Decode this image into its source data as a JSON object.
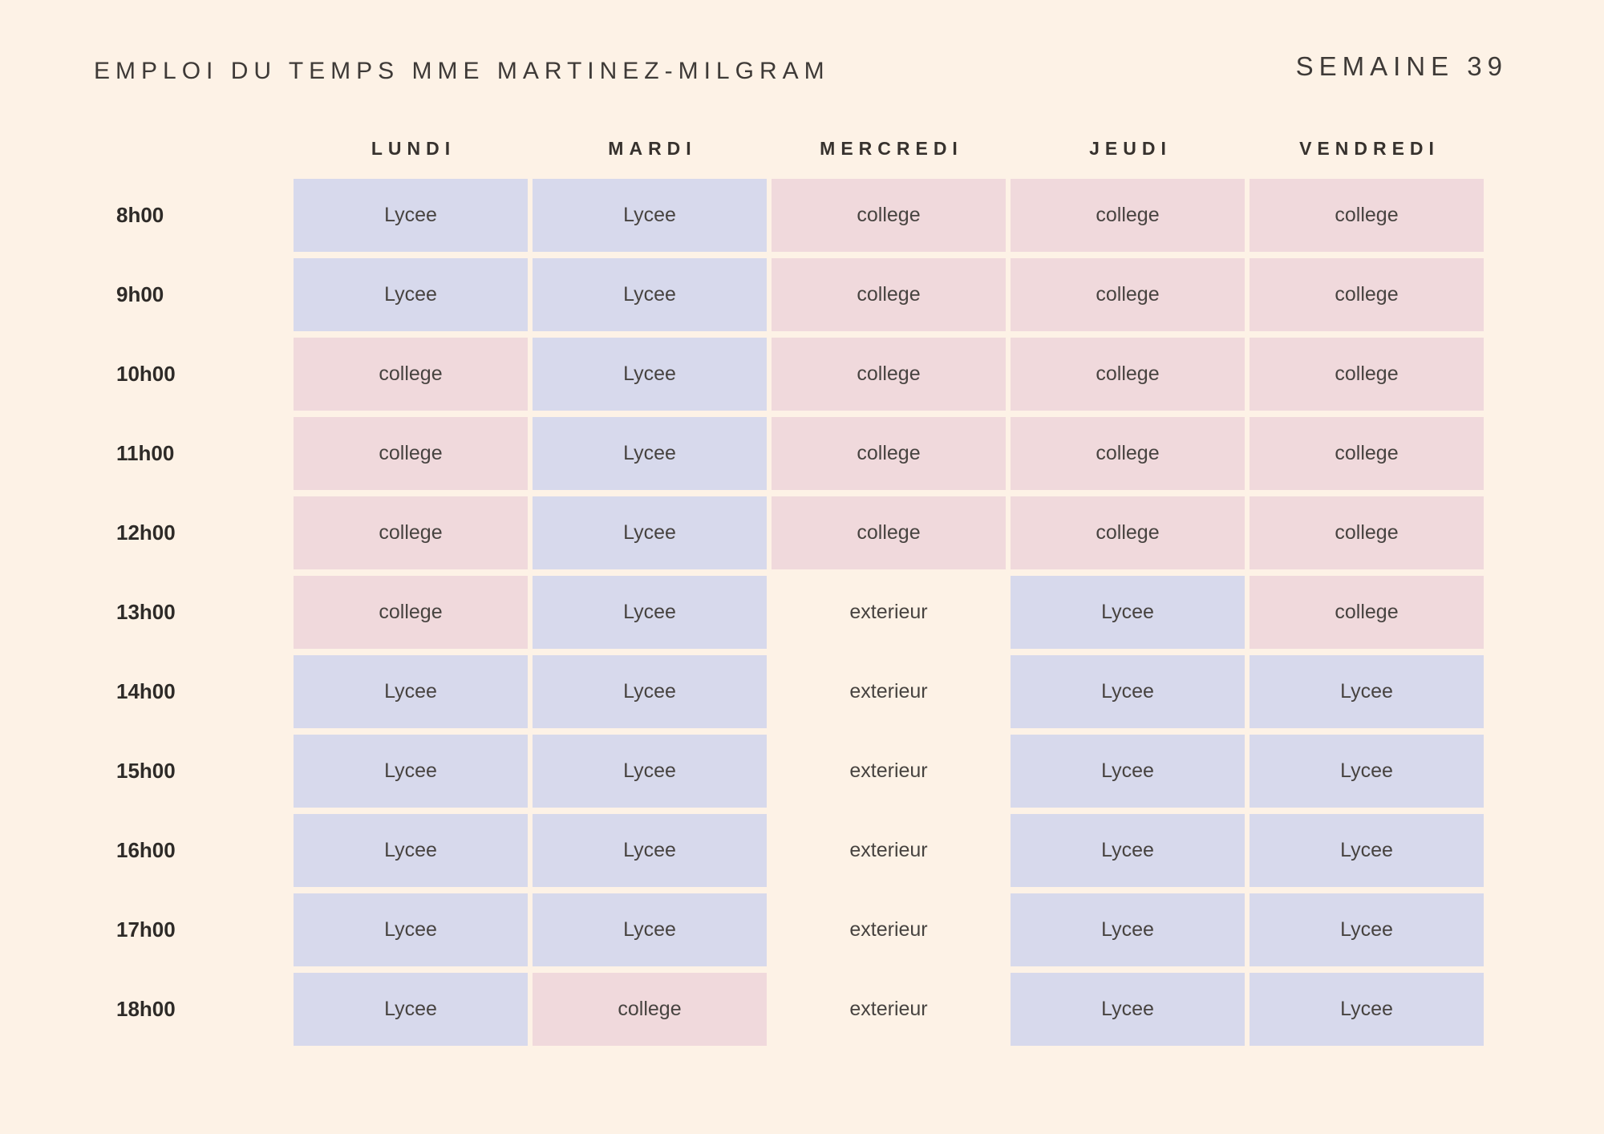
{
  "header": {
    "title": "EMPLOI DU TEMPS MME MARTINEZ-MILGRAM",
    "week_label": "SEMAINE 39"
  },
  "colors": {
    "background": "#fdf2e6",
    "lycee": "#d7d9ec",
    "college": "#f0d9dc",
    "title_text": "#3e3a37",
    "cell_text": "#474340"
  },
  "schedule": {
    "days": [
      {
        "key": "lundi",
        "label": "LUNDI"
      },
      {
        "key": "mardi",
        "label": "MARDI"
      },
      {
        "key": "mercredi",
        "label": "MERCREDI"
      },
      {
        "key": "jeudi",
        "label": "JEUDI"
      },
      {
        "key": "vendredi",
        "label": "VENDREDI"
      }
    ],
    "rows": [
      {
        "time": "8h00",
        "cells": [
          {
            "type": "lycee",
            "label": "Lycee"
          },
          {
            "type": "lycee",
            "label": "Lycee"
          },
          {
            "type": "college",
            "label": "college"
          },
          {
            "type": "college",
            "label": "college"
          },
          {
            "type": "college",
            "label": "college"
          }
        ]
      },
      {
        "time": "9h00",
        "cells": [
          {
            "type": "lycee",
            "label": "Lycee"
          },
          {
            "type": "lycee",
            "label": "Lycee"
          },
          {
            "type": "college",
            "label": "college"
          },
          {
            "type": "college",
            "label": "college"
          },
          {
            "type": "college",
            "label": "college"
          }
        ]
      },
      {
        "time": "10h00",
        "cells": [
          {
            "type": "college",
            "label": "college"
          },
          {
            "type": "lycee",
            "label": "Lycee"
          },
          {
            "type": "college",
            "label": "college"
          },
          {
            "type": "college",
            "label": "college"
          },
          {
            "type": "college",
            "label": "college"
          }
        ]
      },
      {
        "time": "11h00",
        "cells": [
          {
            "type": "college",
            "label": "college"
          },
          {
            "type": "lycee",
            "label": "Lycee"
          },
          {
            "type": "college",
            "label": "college"
          },
          {
            "type": "college",
            "label": "college"
          },
          {
            "type": "college",
            "label": "college"
          }
        ]
      },
      {
        "time": "12h00",
        "cells": [
          {
            "type": "college",
            "label": "college"
          },
          {
            "type": "lycee",
            "label": "Lycee"
          },
          {
            "type": "college",
            "label": "college"
          },
          {
            "type": "college",
            "label": "college"
          },
          {
            "type": "college",
            "label": "college"
          }
        ]
      },
      {
        "time": "13h00",
        "cells": [
          {
            "type": "college",
            "label": "college"
          },
          {
            "type": "lycee",
            "label": "Lycee"
          },
          {
            "type": "exterieur",
            "label": "exterieur"
          },
          {
            "type": "lycee",
            "label": "Lycee"
          },
          {
            "type": "college",
            "label": "college"
          }
        ]
      },
      {
        "time": "14h00",
        "cells": [
          {
            "type": "lycee",
            "label": "Lycee"
          },
          {
            "type": "lycee",
            "label": "Lycee"
          },
          {
            "type": "exterieur",
            "label": "exterieur"
          },
          {
            "type": "lycee",
            "label": "Lycee"
          },
          {
            "type": "lycee",
            "label": "Lycee"
          }
        ]
      },
      {
        "time": "15h00",
        "cells": [
          {
            "type": "lycee",
            "label": "Lycee"
          },
          {
            "type": "lycee",
            "label": "Lycee"
          },
          {
            "type": "exterieur",
            "label": "exterieur"
          },
          {
            "type": "lycee",
            "label": "Lycee"
          },
          {
            "type": "lycee",
            "label": "Lycee"
          }
        ]
      },
      {
        "time": "16h00",
        "cells": [
          {
            "type": "lycee",
            "label": "Lycee"
          },
          {
            "type": "lycee",
            "label": "Lycee"
          },
          {
            "type": "exterieur",
            "label": "exterieur"
          },
          {
            "type": "lycee",
            "label": "Lycee"
          },
          {
            "type": "lycee",
            "label": "Lycee"
          }
        ]
      },
      {
        "time": "17h00",
        "cells": [
          {
            "type": "lycee",
            "label": "Lycee"
          },
          {
            "type": "lycee",
            "label": "Lycee"
          },
          {
            "type": "exterieur",
            "label": "exterieur"
          },
          {
            "type": "lycee",
            "label": "Lycee"
          },
          {
            "type": "lycee",
            "label": "Lycee"
          }
        ]
      },
      {
        "time": "18h00",
        "cells": [
          {
            "type": "lycee",
            "label": "Lycee"
          },
          {
            "type": "college",
            "label": "college"
          },
          {
            "type": "exterieur",
            "label": "exterieur"
          },
          {
            "type": "lycee",
            "label": "Lycee"
          },
          {
            "type": "lycee",
            "label": "Lycee"
          }
        ]
      }
    ]
  }
}
